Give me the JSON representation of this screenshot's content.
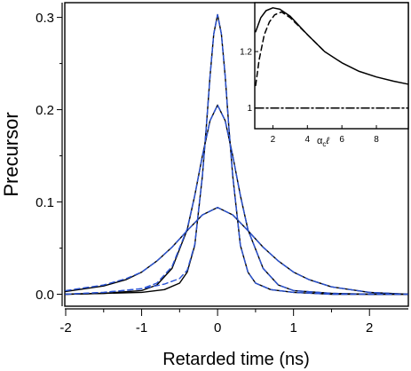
{
  "chart_data": [
    {
      "type": "line",
      "xlabel": "Retarded time (ns)",
      "ylabel": "Precursor",
      "xlim": [
        -2,
        2.5
      ],
      "ylim": [
        -0.012,
        0.315
      ],
      "xticks": [
        -2,
        -1,
        0,
        1,
        2
      ],
      "xtick_labels": [
        "-2",
        "-1",
        "0",
        "1",
        "2"
      ],
      "yticks": [
        0.0,
        0.1,
        0.2,
        0.3
      ],
      "ytick_labels": [
        "0.0",
        "0.1",
        "0.2",
        "0.3"
      ],
      "grid": false,
      "series": [
        {
          "style": "solid",
          "color": "#000000",
          "x": [
            -2.0,
            -1.5,
            -1.2,
            -1.0,
            -0.8,
            -0.6,
            -0.4,
            -0.2,
            0.0,
            0.2,
            0.4,
            0.6,
            0.8,
            1.0,
            1.2,
            1.5,
            2.0,
            2.5
          ],
          "y": [
            0.003,
            0.009,
            0.016,
            0.024,
            0.036,
            0.051,
            0.069,
            0.086,
            0.094,
            0.086,
            0.069,
            0.051,
            0.036,
            0.024,
            0.016,
            0.008,
            0.002,
            0.0
          ]
        },
        {
          "style": "dashed",
          "color": "#2a53d4",
          "x": [
            -2.0,
            -1.5,
            -1.2,
            -1.0,
            -0.8,
            -0.6,
            -0.4,
            -0.2,
            0.0,
            0.2,
            0.4,
            0.6,
            0.8,
            1.0,
            1.2,
            1.5,
            2.0,
            2.5
          ],
          "y": [
            0.004,
            0.01,
            0.017,
            0.024,
            0.036,
            0.051,
            0.069,
            0.086,
            0.094,
            0.086,
            0.069,
            0.051,
            0.036,
            0.024,
            0.016,
            0.008,
            0.002,
            0.0
          ]
        },
        {
          "style": "solid",
          "color": "#000000",
          "x": [
            -2.0,
            -1.5,
            -1.0,
            -0.8,
            -0.6,
            -0.4,
            -0.3,
            -0.2,
            -0.1,
            0.0,
            0.1,
            0.2,
            0.3,
            0.4,
            0.6,
            0.8,
            1.0,
            1.5,
            2.0,
            2.5
          ],
          "y": [
            0.0,
            0.001,
            0.004,
            0.01,
            0.028,
            0.07,
            0.107,
            0.15,
            0.188,
            0.205,
            0.188,
            0.15,
            0.107,
            0.07,
            0.028,
            0.01,
            0.004,
            0.001,
            0.0,
            0.0
          ]
        },
        {
          "style": "dashed",
          "color": "#2a53d4",
          "x": [
            -2.0,
            -1.5,
            -1.0,
            -0.8,
            -0.6,
            -0.4,
            -0.3,
            -0.2,
            -0.1,
            0.0,
            0.1,
            0.2,
            0.3,
            0.4,
            0.6,
            0.8,
            1.0,
            1.5,
            2.0,
            2.5
          ],
          "y": [
            0.0,
            0.002,
            0.006,
            0.012,
            0.03,
            0.071,
            0.107,
            0.15,
            0.188,
            0.205,
            0.188,
            0.15,
            0.107,
            0.07,
            0.028,
            0.01,
            0.004,
            0.001,
            0.0,
            0.0
          ]
        },
        {
          "style": "solid",
          "color": "#000000",
          "x": [
            -2.0,
            -1.5,
            -1.0,
            -0.7,
            -0.5,
            -0.4,
            -0.3,
            -0.2,
            -0.15,
            -0.1,
            -0.05,
            0.0,
            0.05,
            0.1,
            0.15,
            0.2,
            0.3,
            0.4,
            0.5,
            0.7,
            1.0,
            1.5,
            2.0,
            2.5
          ],
          "y": [
            0.0,
            0.001,
            0.002,
            0.005,
            0.012,
            0.024,
            0.053,
            0.128,
            0.18,
            0.236,
            0.282,
            0.303,
            0.282,
            0.236,
            0.18,
            0.128,
            0.053,
            0.024,
            0.012,
            0.005,
            0.002,
            0.0,
            0.0,
            0.0
          ]
        },
        {
          "style": "dashed",
          "color": "#2a53d4",
          "x": [
            -2.0,
            -1.5,
            -1.0,
            -0.7,
            -0.5,
            -0.4,
            -0.3,
            -0.2,
            -0.15,
            -0.1,
            -0.05,
            0.0,
            0.05,
            0.1,
            0.15,
            0.2,
            0.3,
            0.4,
            0.5,
            0.7,
            1.0,
            1.5,
            2.0,
            2.5
          ],
          "y": [
            0.0,
            0.002,
            0.006,
            0.011,
            0.017,
            0.026,
            0.054,
            0.128,
            0.18,
            0.236,
            0.282,
            0.303,
            0.282,
            0.236,
            0.18,
            0.128,
            0.053,
            0.024,
            0.012,
            0.005,
            0.002,
            0.0,
            0.0,
            0.0
          ]
        }
      ]
    },
    {
      "type": "line",
      "xlabel_main": "α",
      "xlabel_sub": "c",
      "xlabel_tail": "ℓ",
      "ylabel": "",
      "xlim": [
        1.0,
        9.8
      ],
      "ylim": [
        0.93,
        1.37
      ],
      "xticks": [
        2,
        4,
        6,
        8
      ],
      "xtick_labels": [
        "2",
        "4",
        "6",
        "8"
      ],
      "yticks": [
        1.0,
        1.2
      ],
      "ytick_labels": [
        "1",
        "1.2"
      ],
      "grid": false,
      "series": [
        {
          "style": "solid",
          "color": "#000000",
          "x": [
            1.0,
            1.3,
            1.6,
            2.0,
            2.4,
            3.0,
            4.0,
            5.0,
            6.0,
            7.0,
            8.0,
            9.0,
            9.8
          ],
          "y": [
            1.27,
            1.32,
            1.345,
            1.355,
            1.35,
            1.325,
            1.26,
            1.2,
            1.16,
            1.13,
            1.11,
            1.095,
            1.085
          ]
        },
        {
          "style": "dashed",
          "color": "#000000",
          "x": [
            1.0,
            1.2,
            1.5,
            1.8,
            2.1,
            2.5,
            3.0,
            3.5,
            4.0,
            5.0
          ],
          "y": [
            1.08,
            1.17,
            1.26,
            1.305,
            1.33,
            1.34,
            1.32,
            1.29,
            1.26,
            1.2
          ]
        },
        {
          "style": "dashdot",
          "color": "#000000",
          "x": [
            1.0,
            9.8
          ],
          "y": [
            1.0,
            1.0
          ]
        }
      ]
    }
  ]
}
